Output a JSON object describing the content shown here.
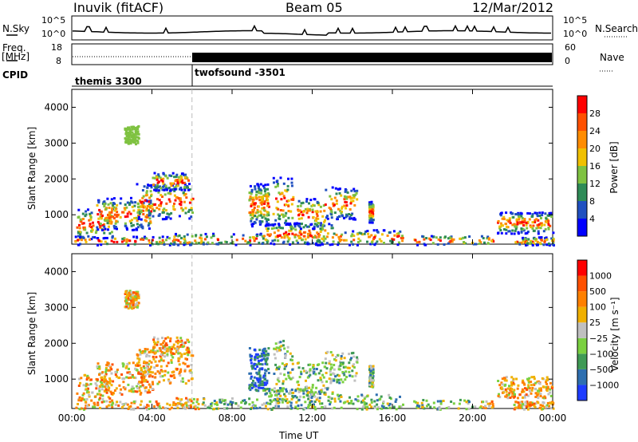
{
  "header": {
    "title": "Inuvik (fitACF)",
    "beam": "Beam 05",
    "date": "12/Mar/2012"
  },
  "strips": {
    "nsky_label": "N.Sky",
    "nsky_ticks": [
      "10^5",
      "10^0"
    ],
    "nsearch_label": "N.Search",
    "nsearch_ticks": [
      "10^5",
      "10^0"
    ],
    "freq_label": "Freq.",
    "freq_unit": "[MHz]",
    "freq_ticks": [
      "18",
      "8"
    ],
    "nave_label": "Nave",
    "nave_ticks": [
      "60",
      "0"
    ],
    "cpid_label": "CPID",
    "cpid_modes": [
      {
        "name": "themis 3300",
        "start_hour": 0
      },
      {
        "name": "twofsound -3501",
        "start_hour": 6
      }
    ]
  },
  "chart_data": [
    {
      "type": "heatmap",
      "title": "",
      "ylabel": "Slant Range [km]",
      "xlabel": "Time UT",
      "x_ticks": [
        "00:00",
        "04:00",
        "08:00",
        "12:00",
        "16:00",
        "20:00",
        "00:00"
      ],
      "xlim_hours": [
        0,
        24
      ],
      "y_ticks": [
        1000,
        2000,
        3000,
        4000
      ],
      "ylim": [
        180,
        4500
      ],
      "colorbar": {
        "label": "Power [dB]",
        "ticks": [
          "4",
          "8",
          "12",
          "16",
          "20",
          "24",
          "28"
        ],
        "colors": [
          "#0000ff",
          "#2050c0",
          "#2e8b57",
          "#7fc241",
          "#f0c000",
          "#ff8c00",
          "#ff5000",
          "#ff0000"
        ]
      }
    },
    {
      "type": "heatmap",
      "title": "",
      "ylabel": "Slant Range [km]",
      "xlabel": "Time UT",
      "x_ticks": [
        "00:00",
        "04:00",
        "08:00",
        "12:00",
        "16:00",
        "20:00",
        "00:00"
      ],
      "xlim_hours": [
        0,
        24
      ],
      "y_ticks": [
        1000,
        2000,
        3000,
        4000
      ],
      "ylim": [
        180,
        4500
      ],
      "colorbar": {
        "label": "Velocity [m s⁻¹]",
        "ticks": [
          "1000",
          "500",
          "100",
          "25",
          "−25",
          "−100",
          "−500",
          "−1000"
        ],
        "colors": [
          "#1e3cff",
          "#2e6fb0",
          "#3f9a55",
          "#7ad040",
          "#c0c0c0",
          "#f0b000",
          "#ff8000",
          "#ff5000",
          "#ff0000"
        ]
      }
    }
  ]
}
